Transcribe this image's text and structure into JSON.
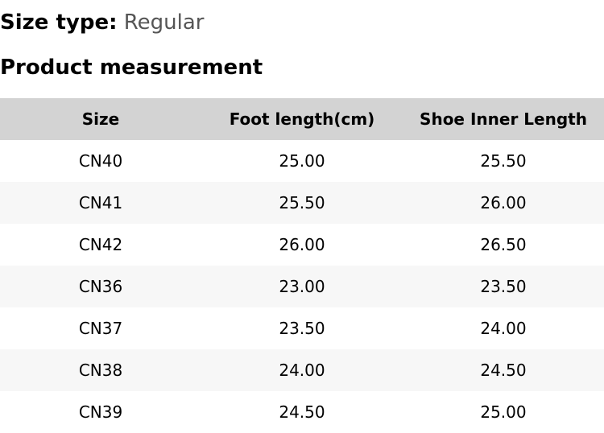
{
  "size_type": {
    "label": "Size type:",
    "value": "Regular"
  },
  "section_title": "Product measurement",
  "table": {
    "headers": [
      "Size",
      "Foot length(cm)",
      "Shoe Inner Length"
    ],
    "rows": [
      [
        "CN40",
        "25.00",
        "25.50"
      ],
      [
        "CN41",
        "25.50",
        "26.00"
      ],
      [
        "CN42",
        "26.00",
        "26.50"
      ],
      [
        "CN36",
        "23.00",
        "23.50"
      ],
      [
        "CN37",
        "23.50",
        "24.00"
      ],
      [
        "CN38",
        "24.00",
        "24.50"
      ],
      [
        "CN39",
        "24.50",
        "25.00"
      ]
    ]
  },
  "colors": {
    "header_bg": "#d3d3d3",
    "stripe_bg": "#f7f7f7",
    "value_text": "#555555"
  }
}
